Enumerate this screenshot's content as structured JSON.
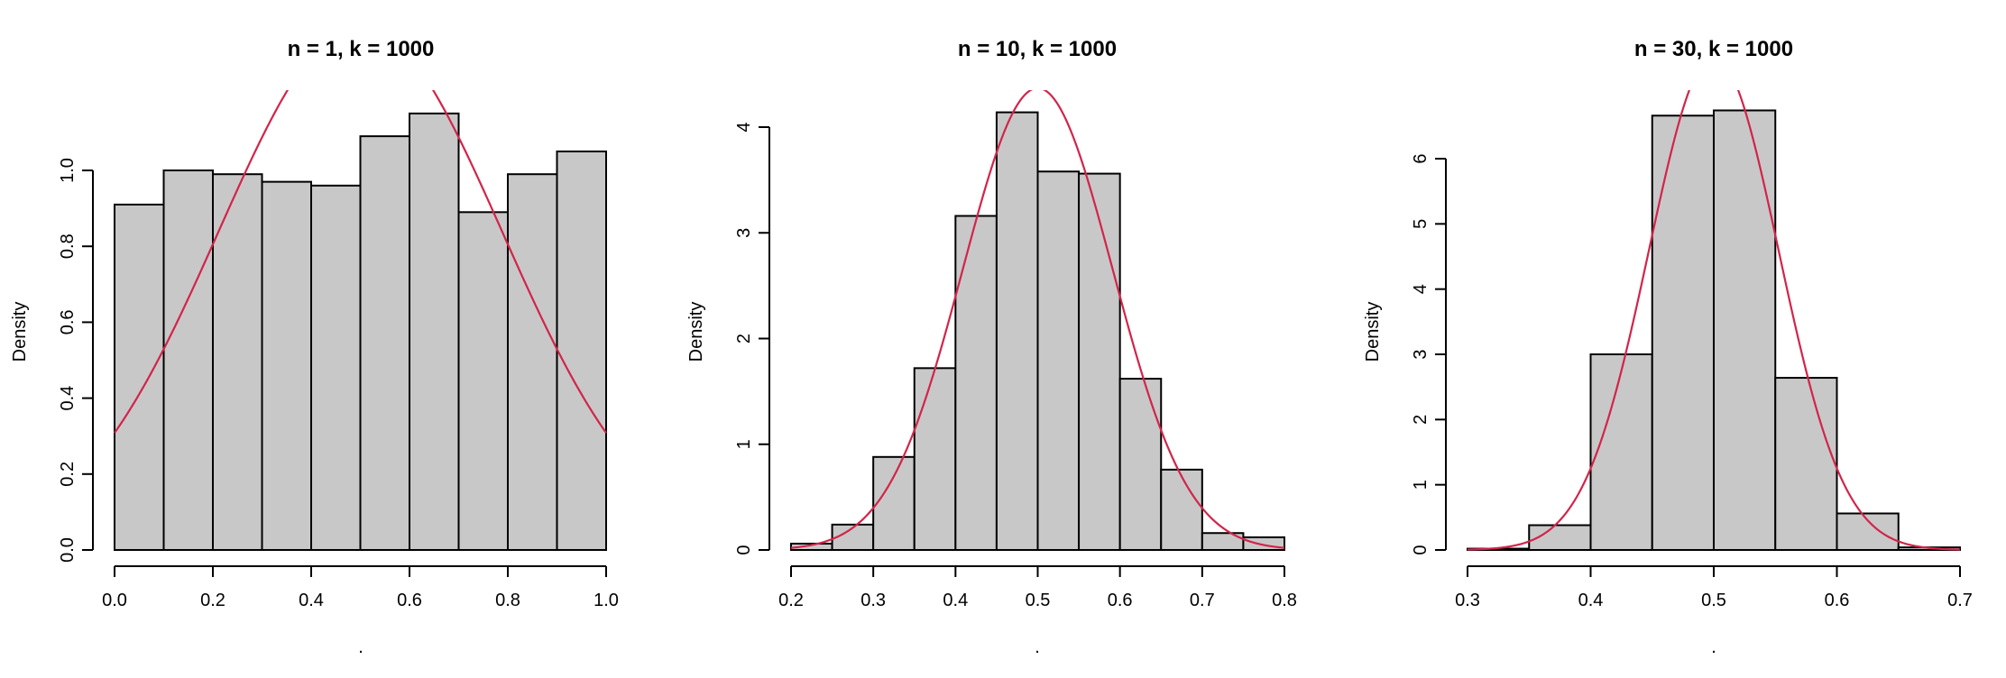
{
  "chart_data": [
    {
      "type": "bar",
      "title": "n = 1, k = 1000",
      "ylabel": "Density",
      "xlabel": ".",
      "xlim": [
        0.0,
        1.0
      ],
      "ylim": [
        0.0,
        1.0
      ],
      "xticks": [
        0.0,
        0.2,
        0.4,
        0.6,
        0.8,
        1.0
      ],
      "xtick_labels": [
        "0.0",
        "0.2",
        "0.4",
        "0.6",
        "0.8",
        "1.0"
      ],
      "yticks": [
        0.0,
        0.2,
        0.4,
        0.6,
        0.8,
        1.0
      ],
      "ytick_labels": [
        "0.0",
        "0.2",
        "0.4",
        "0.6",
        "0.8",
        "1.0"
      ],
      "bin_edges": [
        0.0,
        0.1,
        0.2,
        0.3,
        0.4,
        0.5,
        0.6,
        0.7,
        0.8,
        0.9,
        1.0
      ],
      "values": [
        0.91,
        1.0,
        0.99,
        0.97,
        0.96,
        1.09,
        1.15,
        0.89,
        0.99,
        1.05
      ],
      "curve": {
        "mean": 0.5,
        "sd": 0.2887,
        "color": "#d2244a"
      },
      "bar_color": "#c8c8c8"
    },
    {
      "type": "bar",
      "title": "n = 10, k = 1000",
      "ylabel": "Density",
      "xlabel": ".",
      "xlim": [
        0.2,
        0.8
      ],
      "ylim": [
        0,
        4
      ],
      "xticks": [
        0.2,
        0.3,
        0.4,
        0.5,
        0.6,
        0.7,
        0.8
      ],
      "xtick_labels": [
        "0.2",
        "0.3",
        "0.4",
        "0.5",
        "0.6",
        "0.7",
        "0.8"
      ],
      "yticks": [
        0,
        1,
        2,
        3,
        4
      ],
      "ytick_labels": [
        "0",
        "1",
        "2",
        "3",
        "4"
      ],
      "bin_edges": [
        0.2,
        0.25,
        0.3,
        0.35,
        0.4,
        0.45,
        0.5,
        0.55,
        0.6,
        0.65,
        0.7,
        0.75,
        0.8
      ],
      "values": [
        0.06,
        0.24,
        0.88,
        1.72,
        3.16,
        4.14,
        3.58,
        3.56,
        1.62,
        0.76,
        0.16,
        0.12
      ],
      "curve": {
        "mean": 0.5,
        "sd": 0.0913,
        "color": "#d2244a"
      },
      "bar_color": "#c8c8c8"
    },
    {
      "type": "bar",
      "title": "n = 30, k = 1000",
      "ylabel": "Density",
      "xlabel": ".",
      "xlim": [
        0.3,
        0.7
      ],
      "ylim": [
        0,
        6
      ],
      "xticks": [
        0.3,
        0.4,
        0.5,
        0.6,
        0.7
      ],
      "xtick_labels": [
        "0.3",
        "0.4",
        "0.5",
        "0.6",
        "0.7"
      ],
      "yticks": [
        0,
        1,
        2,
        3,
        4,
        5,
        6
      ],
      "ytick_labels": [
        "0",
        "1",
        "2",
        "3",
        "4",
        "5",
        "6"
      ],
      "bin_edges": [
        0.3,
        0.35,
        0.4,
        0.45,
        0.5,
        0.55,
        0.6,
        0.65,
        0.7
      ],
      "values": [
        0.02,
        0.38,
        3.0,
        6.66,
        6.74,
        2.64,
        0.56,
        0.04
      ],
      "curve": {
        "mean": 0.5,
        "sd": 0.0527,
        "color": "#d2244a"
      },
      "bar_color": "#c8c8c8"
    }
  ]
}
